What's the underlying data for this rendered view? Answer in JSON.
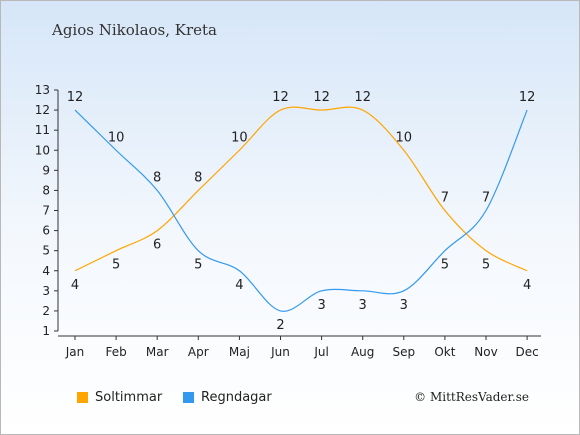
{
  "title": "Agios Nikolaos, Kreta",
  "copyright": "© MittResVader.se",
  "chart_data": {
    "type": "line",
    "categories": [
      "Jan",
      "Feb",
      "Mar",
      "Apr",
      "Maj",
      "Jun",
      "Jul",
      "Aug",
      "Sep",
      "Okt",
      "Nov",
      "Dec"
    ],
    "ylim": [
      1,
      13
    ],
    "yticks": [
      1,
      2,
      3,
      4,
      5,
      6,
      7,
      8,
      9,
      10,
      11,
      12,
      13
    ],
    "grid": false,
    "legend_position": "bottom-left",
    "series": [
      {
        "name": "Soltimmar",
        "color": "#ffa500",
        "values": [
          4,
          5,
          6,
          8,
          10,
          12,
          12,
          12,
          10,
          7,
          5,
          4
        ]
      },
      {
        "name": "Regndagar",
        "color": "#3399ee",
        "values": [
          12,
          10,
          8,
          5,
          4,
          2,
          3,
          3,
          3,
          5,
          7,
          12
        ]
      }
    ]
  }
}
